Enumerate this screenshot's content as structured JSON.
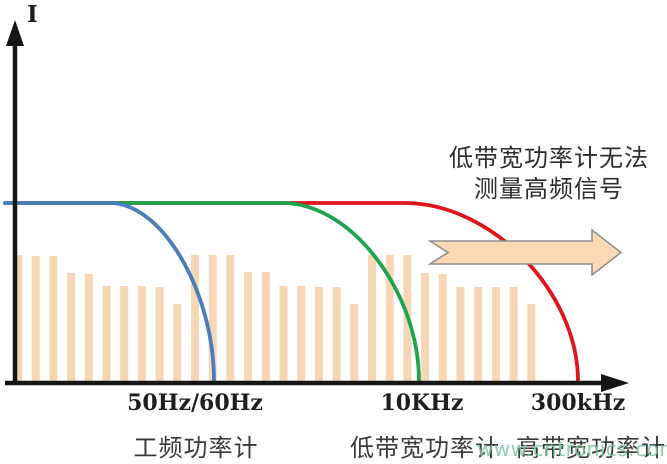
{
  "chart_data": {
    "type": "line",
    "title": "",
    "description": "Frequency response (measurement bandwidth) of three classes of power meters overlaid on a current harmonic spectrum; low-bandwidth meters roll off before high-frequency content.",
    "y_axis": {
      "label": "I"
    },
    "x_axis": {
      "ticks": [
        {
          "label": "50Hz/60Hz",
          "x": 195
        },
        {
          "label": "10KHz",
          "x": 422
        },
        {
          "label": "300kHz",
          "x": 578
        }
      ]
    },
    "annotation": {
      "line1": "低带宽功率计无法",
      "line2": "测量高频信号"
    },
    "series": [
      {
        "name": "工频功率计",
        "bandwidth_cutoff": "50Hz/60Hz",
        "color": "#4a7ebb",
        "start_x": 5,
        "knee_x": 110,
        "cutoff_x": 214
      },
      {
        "name": "低带宽功率计",
        "bandwidth_cutoff": "10KHz",
        "color": "#1ea44d",
        "start_x": 5,
        "knee_x": 283,
        "cutoff_x": 419
      },
      {
        "name": "高带宽功率计",
        "bandwidth_cutoff": "300kHz",
        "color": "#e0151c",
        "start_x": 5,
        "knee_x": 405,
        "cutoff_x": 578
      }
    ],
    "meter_labels": [
      {
        "text": "工频功率计",
        "x": 196
      },
      {
        "text": "低带宽功率计",
        "x": 425
      },
      {
        "text": "高带宽功率计",
        "x": 591
      }
    ],
    "spectrum_bars": {
      "x_start": 14,
      "step": 17.7,
      "width": 8,
      "color": "#f5d6b7",
      "heights": [
        126,
        125,
        125,
        108,
        107,
        95,
        95,
        95,
        94,
        77,
        126,
        126,
        126,
        109,
        109,
        95,
        95,
        94,
        94,
        77,
        126,
        126,
        126,
        108,
        107,
        94,
        94,
        94,
        94,
        77
      ]
    },
    "block_arrow": {
      "meaning": "shift toward high frequency",
      "fill": "#fbd9b5",
      "stroke": "#909090"
    },
    "layout": {
      "flat_level_y": 203,
      "baseline_y": 381,
      "y_axis_x": 15,
      "y_axis_top": 20,
      "x_axis_y": 383,
      "x_axis_right": 629,
      "axis_color": "#151515",
      "curve_width": 3.8,
      "grid": "off",
      "legend": "none"
    }
  },
  "watermark": {
    "text": "www.cntronics.com",
    "color": "#7cc7a0"
  }
}
